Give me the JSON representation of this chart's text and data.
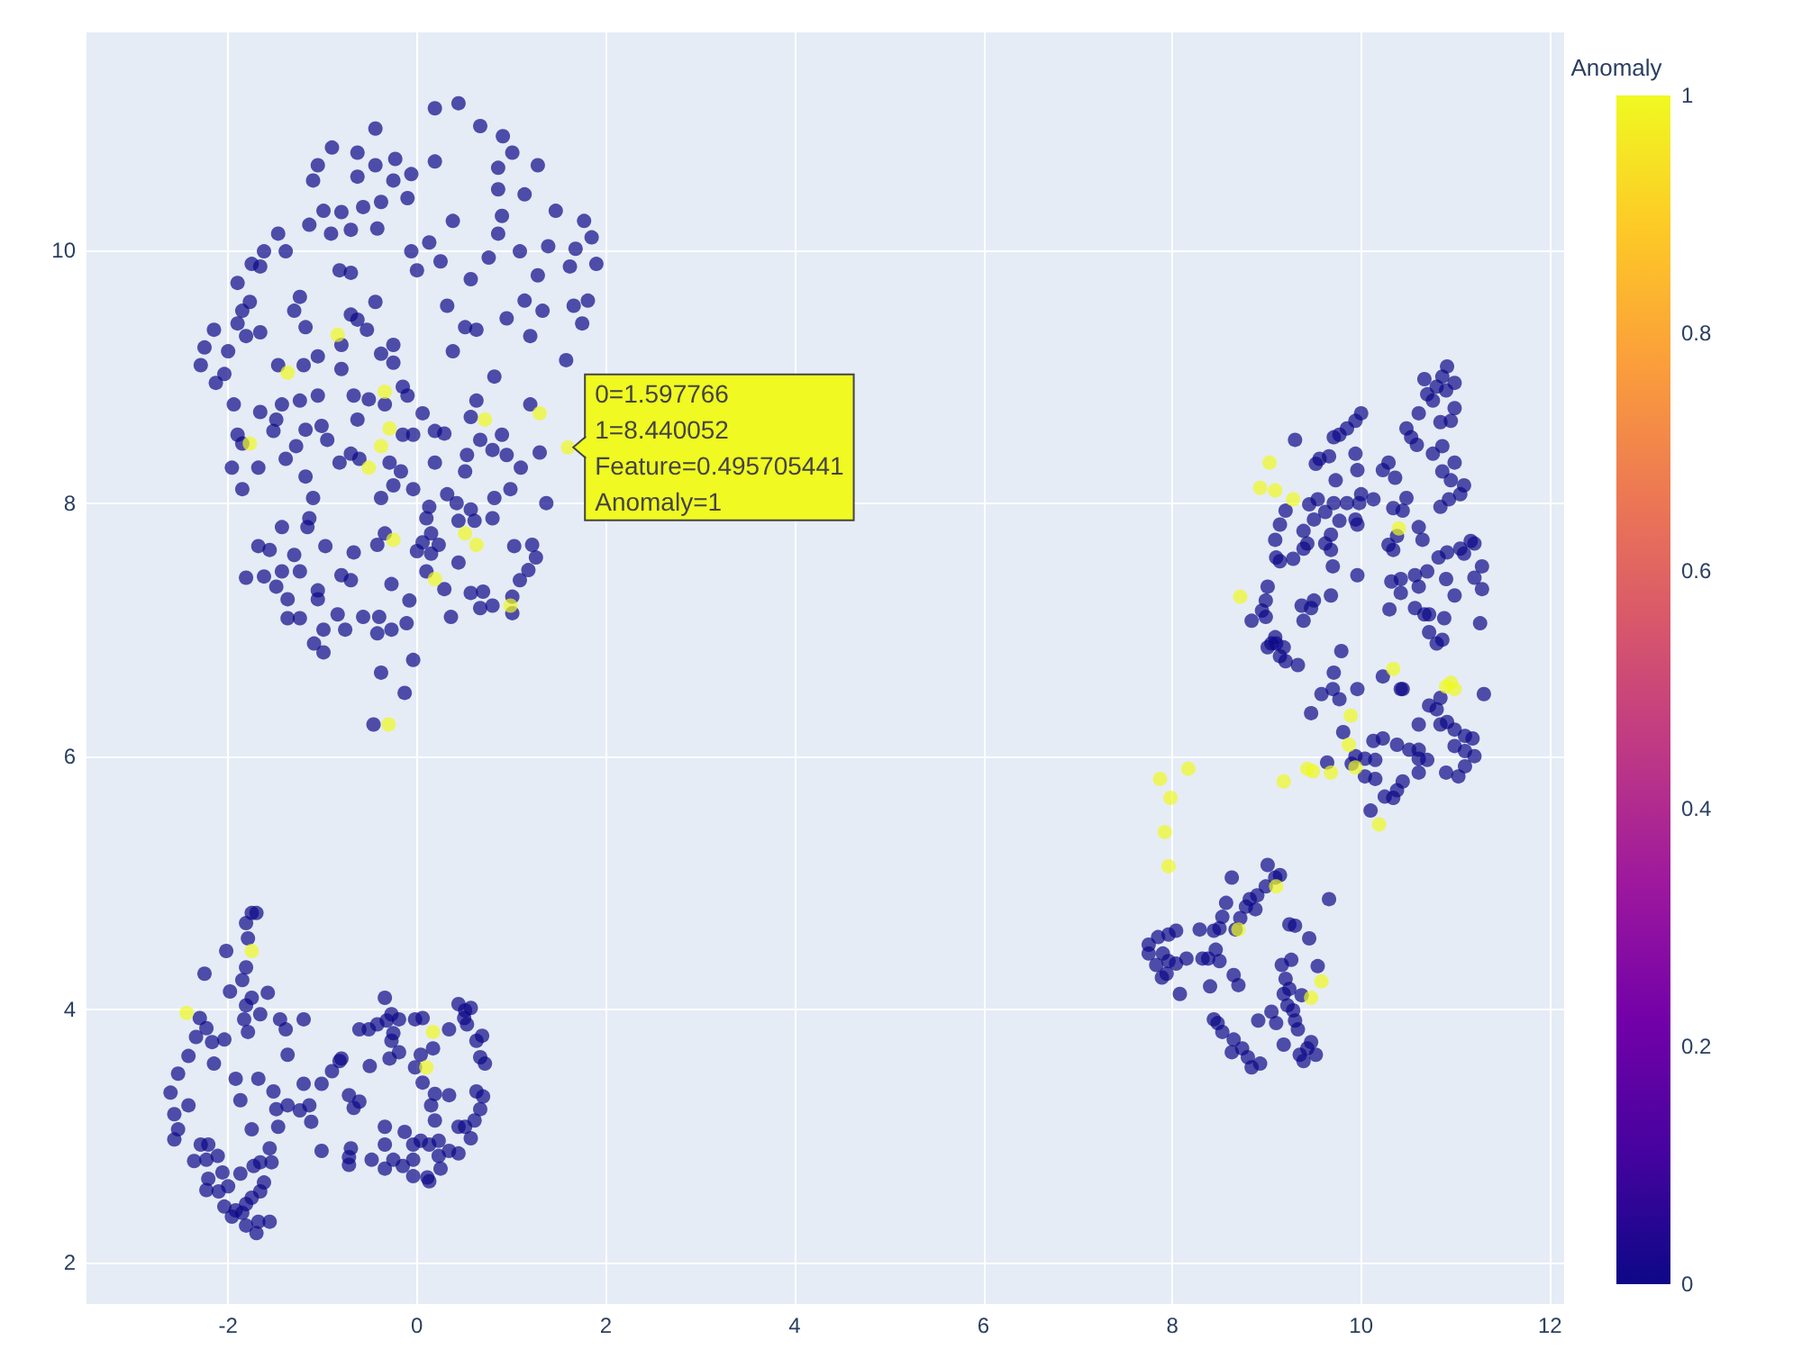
{
  "chart_data": {
    "type": "scatter",
    "x": [
      -0.44,
      0.19,
      0.44,
      0.67,
      0.91,
      0.86,
      1.01,
      1.28,
      0.86,
      1.14,
      0.9,
      0.86,
      1.09,
      1.47,
      1.77,
      1.85,
      1.9,
      1.68,
      1.39,
      1.28,
      1.62,
      1.81,
      1.66,
      1.75,
      1.2,
      0.95,
      1.14,
      1.33,
      1.58,
      0.82,
      0.57,
      0.76,
      0.38,
      0.13,
      0.25,
      0.0,
      0.32,
      0.51,
      0.63,
      0.38,
      0.19,
      -0.06,
      -0.25,
      -0.23,
      -0.44,
      -0.63,
      -0.63,
      -0.9,
      -1.05,
      -1.1,
      -0.38,
      -0.57,
      -0.8,
      -0.99,
      -1.14,
      -1.47,
      -1.62,
      -1.39,
      -0.91,
      -0.7,
      -0.42,
      -0.1,
      -0.82,
      -0.7,
      -0.06,
      -0.44,
      -0.7,
      -0.63,
      -0.53,
      -0.25,
      -0.38,
      -0.25,
      -0.8,
      -1.05,
      -1.2,
      -1.3,
      -1.24,
      -1.18,
      -1.66,
      -1.81,
      -1.9,
      -1.85,
      -1.77,
      -2.0,
      -2.15,
      -2.25,
      -2.29,
      -2.13,
      -2.04,
      -1.75,
      -1.66,
      -1.9,
      -1.47,
      -0.8,
      -0.67,
      -0.51,
      -0.34,
      -0.15,
      -0.1,
      0.06,
      -1.94,
      -1.9,
      -1.85,
      -1.96,
      -1.68,
      -1.85,
      -1.66,
      -1.49,
      -1.52,
      -1.43,
      -1.24,
      -1.05,
      -1.18,
      -1.01,
      -0.95,
      -1.28,
      -1.39,
      -1.18,
      -1.1,
      -1.14,
      -1.16,
      -1.43,
      -0.82,
      -0.7,
      -0.61,
      -0.63,
      -0.15,
      -0.04,
      0.19,
      0.29,
      -0.29,
      -0.17,
      0.19,
      -0.25,
      -0.38,
      -0.04,
      0.13,
      0.1,
      0.32,
      0.42,
      0.57,
      0.61,
      0.44,
      0.82,
      0.99,
      0.8,
      1.37,
      0.57,
      0.63,
      0.9,
      0.8,
      0.95,
      0.67,
      0.53,
      0.51,
      1.1,
      1.3,
      1.2,
      0.15,
      0.06,
      0.23,
      0.0,
      0.15,
      0.1,
      0.29,
      0.44,
      0.57,
      0.7,
      0.8,
      0.67,
      1.01,
      1.01,
      1.09,
      1.18,
      1.26,
      1.22,
      1.03,
      0.36,
      -0.08,
      -0.11,
      -0.27,
      -0.4,
      -0.42,
      -0.57,
      -0.76,
      -0.84,
      -0.99,
      -1.09,
      -0.99,
      -1.24,
      -1.37,
      -1.37,
      -1.05,
      -1.05,
      -1.49,
      -1.62,
      -1.81,
      -1.43,
      -1.3,
      -1.24,
      -1.56,
      -1.68,
      -0.97,
      -0.8,
      -0.7,
      -0.67,
      -0.42,
      -0.34,
      -0.27,
      -0.38,
      -0.13,
      -0.04,
      -0.46,
      -1.75,
      -1.7,
      -1.81,
      -1.79,
      -2.02,
      -2.25,
      -1.81,
      -1.85,
      -1.98,
      -1.75,
      -1.58,
      -1.81,
      -1.66,
      -1.83,
      -1.79,
      -1.45,
      -1.39,
      -1.2,
      -2.3,
      -2.23,
      -2.34,
      -2.17,
      -2.04,
      -2.42,
      -2.53,
      -2.61,
      -2.57,
      -2.53,
      -2.57,
      -2.42,
      -2.15,
      -1.92,
      -1.87,
      -1.68,
      -1.52,
      -1.49,
      -1.37,
      -1.37,
      -1.2,
      -1.01,
      -0.82,
      -0.9,
      -1.14,
      -1.24,
      -1.12,
      -1.75,
      -1.47,
      -1.56,
      -2.29,
      -2.21,
      -2.36,
      -2.23,
      -2.11,
      -2.06,
      -2.21,
      -2.23,
      -2.1,
      -2.0,
      -2.04,
      -1.92,
      -1.96,
      -1.85,
      -1.81,
      -1.68,
      -1.7,
      -1.56,
      -1.81,
      -1.87,
      -1.73,
      -1.66,
      -1.62,
      -1.66,
      -1.75,
      -1.54,
      -1.01,
      -0.72,
      -0.67,
      -0.61,
      -0.7,
      -0.72,
      -0.72,
      -0.48,
      -0.34,
      -0.34,
      -0.34,
      -0.25,
      -0.15,
      -0.13,
      -0.04,
      -0.04,
      -0.04,
      0.11,
      0.13,
      0.04,
      0.13,
      0.23,
      0.23,
      0.25,
      0.34,
      0.44,
      0.51,
      0.57,
      0.61,
      0.67,
      0.7,
      0.63,
      0.72,
      0.67,
      0.63,
      0.69,
      0.53,
      0.51,
      0.57,
      0.44,
      0.5,
      0.34,
      0.17,
      0.04,
      -0.02,
      0.06,
      0.15,
      0.19,
      0.19,
      0.34,
      0.44,
      -0.25,
      -0.27,
      -0.19,
      -0.29,
      -0.32,
      -0.42,
      -0.51,
      -0.61,
      -0.34,
      -0.27,
      -0.19,
      -0.02,
      0.06,
      -0.5,
      -0.8,
      10.91,
      10.86,
      10.99,
      10.67,
      10.8,
      10.9,
      10.7,
      10.76,
      10.99,
      10.95,
      10.84,
      10.61,
      10.48,
      10.53,
      10.59,
      10.76,
      10.86,
      10.86,
      10.99,
      10.95,
      11.09,
      11.05,
      10.93,
      10.84,
      10.0,
      9.94,
      9.85,
      9.71,
      9.77,
      9.56,
      9.52,
      9.66,
      9.94,
      9.96,
      9.73,
      9.3,
      10.23,
      10.29,
      10.36,
      10.0,
      10.13,
      9.98,
      10.48,
      10.44,
      10.34,
      9.85,
      9.71,
      9.54,
      9.45,
      9.2,
      9.62,
      9.77,
      9.94,
      9.96,
      9.5,
      9.14,
      9.09,
      9.39,
      9.68,
      9.43,
      9.62,
      9.68,
      9.39,
      9.1,
      9.14,
      9.28,
      9.7,
      9.96,
      10.29,
      10.34,
      10.38,
      10.61,
      10.65,
      10.82,
      10.91,
      11.05,
      11.09,
      11.16,
      11.2,
      11.28,
      11.2,
      11.28,
      11.26,
      10.99,
      10.9,
      10.7,
      10.57,
      10.61,
      10.42,
      10.32,
      10.42,
      10.3,
      10.57,
      10.67,
      10.72,
      10.72,
      10.88,
      10.86,
      10.8,
      9.68,
      9.5,
      9.37,
      9.47,
      9.39,
      9.01,
      8.99,
      8.95,
      8.99,
      8.84,
      9.09,
      9.05,
      9.1,
      9.18,
      9.01,
      9.14,
      9.2,
      9.33,
      9.79,
      9.71,
      9.96,
      9.7,
      9.58,
      9.77,
      10.23,
      10.42,
      10.44,
      10.84,
      10.72,
      10.8,
      11.3,
      9.47,
      9.81,
      10.61,
      10.84,
      10.91,
      10.99,
      11.1,
      11.18,
      10.13,
      10.23,
      10.38,
      10.51,
      10.61,
      10.61,
      10.7,
      10.99,
      11.1,
      11.2,
      11.1,
      11.03,
      10.9,
      10.61,
      9.64,
      9.94,
      10.04,
      10.15,
      9.9,
      10.04,
      10.15,
      10.44,
      10.38,
      10.25,
      10.34,
      10.1,
      9.01,
      9.14,
      9.09,
      8.99,
      8.9,
      8.82,
      8.63,
      8.57,
      9.66,
      8.78,
      8.88,
      8.72,
      8.53,
      8.5,
      8.44,
      8.67,
      8.29,
      8.04,
      7.96,
      7.85,
      7.75,
      7.75,
      7.9,
      7.83,
      7.96,
      8.04,
      7.94,
      7.89,
      8.08,
      8.15,
      8.32,
      8.38,
      8.46,
      8.5,
      8.4,
      8.65,
      8.7,
      9.24,
      9.3,
      9.45,
      9.26,
      9.16,
      9.54,
      9.2,
      9.24,
      9.18,
      9.22,
      9.37,
      9.28,
      9.05,
      8.91,
      9.1,
      9.3,
      9.33,
      8.44,
      8.48,
      8.53,
      8.65,
      8.63,
      8.74,
      8.8,
      8.84,
      8.93,
      9.18,
      9.35,
      9.43,
      9.47,
      9.52,
      9.39,
      -0.84,
      -1.37,
      -0.34,
      -0.29,
      1.3,
      0.72,
      -0.38,
      -0.51,
      -1.77,
      1.6,
      -0.25,
      0.51,
      0.63,
      0.19,
      0.99,
      -0.3,
      -1.75,
      -2.44,
      0.17,
      0.1,
      9.03,
      8.93,
      9.09,
      9.28,
      10.4,
      8.72,
      10.34,
      10.95,
      10.99,
      10.9,
      9.89,
      9.87,
      9.43,
      9.49,
      9.68,
      9.18,
      10.19,
      9.94,
      8.17,
      7.87,
      7.98,
      7.92,
      7.96,
      9.1,
      9.58,
      9.47,
      8.7
    ],
    "values": [
      10.96,
      11.12,
      11.16,
      10.98,
      10.9,
      10.65,
      10.77,
      10.67,
      10.48,
      10.44,
      10.27,
      10.13,
      9.99,
      10.31,
      10.23,
      10.1,
      9.89,
      10.01,
      10.03,
      9.8,
      9.87,
      9.6,
      9.56,
      9.42,
      9.32,
      9.46,
      9.6,
      9.52,
      9.13,
      9.0,
      9.77,
      9.94,
      10.23,
      10.06,
      9.91,
      9.84,
      9.56,
      9.39,
      9.37,
      9.2,
      10.7,
      10.6,
      10.55,
      10.72,
      10.67,
      10.58,
      10.77,
      10.81,
      10.67,
      10.55,
      10.38,
      10.34,
      10.3,
      10.31,
      10.2,
      10.13,
      9.99,
      9.99,
      10.13,
      10.16,
      10.17,
      10.41,
      9.84,
      9.82,
      9.99,
      9.59,
      9.49,
      9.45,
      9.37,
      9.25,
      9.18,
      9.11,
      9.25,
      9.16,
      9.09,
      9.52,
      9.63,
      9.39,
      9.35,
      9.32,
      9.42,
      9.52,
      9.59,
      9.2,
      9.37,
      9.23,
      9.09,
      8.95,
      9.02,
      9.89,
      9.87,
      9.74,
      9.09,
      9.06,
      8.85,
      8.82,
      8.78,
      8.92,
      8.85,
      8.71,
      8.78,
      8.54,
      8.47,
      8.28,
      8.28,
      8.11,
      8.72,
      8.66,
      8.57,
      8.78,
      8.81,
      8.85,
      8.58,
      8.61,
      8.5,
      8.45,
      8.35,
      8.21,
      8.04,
      7.88,
      7.81,
      7.81,
      8.32,
      8.39,
      8.35,
      8.66,
      8.54,
      8.54,
      8.57,
      8.55,
      8.32,
      8.25,
      8.32,
      8.14,
      8.04,
      8.11,
      7.97,
      7.88,
      8.07,
      8.0,
      7.95,
      7.86,
      7.86,
      8.04,
      8.11,
      7.88,
      8.0,
      8.68,
      8.81,
      8.54,
      8.42,
      8.38,
      8.5,
      8.38,
      8.25,
      8.28,
      8.4,
      8.78,
      7.76,
      7.69,
      7.67,
      7.62,
      7.6,
      7.46,
      7.32,
      7.53,
      7.29,
      7.3,
      7.19,
      7.17,
      7.26,
      7.13,
      7.39,
      7.47,
      7.57,
      7.67,
      7.66,
      7.1,
      7.23,
      7.05,
      7.0,
      7.1,
      6.97,
      7.1,
      7.0,
      7.12,
      7.0,
      6.89,
      6.82,
      7.09,
      7.09,
      7.24,
      7.24,
      7.31,
      7.34,
      7.42,
      7.41,
      7.46,
      7.59,
      7.46,
      7.63,
      7.66,
      7.66,
      7.43,
      7.39,
      7.61,
      7.67,
      7.76,
      7.36,
      6.66,
      6.5,
      6.76,
      6.25,
      4.76,
      4.76,
      4.68,
      4.56,
      4.46,
      4.28,
      4.33,
      4.23,
      4.14,
      4.09,
      4.13,
      4.03,
      3.96,
      3.92,
      3.82,
      3.92,
      3.84,
      3.92,
      3.93,
      3.85,
      3.78,
      3.74,
      3.76,
      3.63,
      3.49,
      3.34,
      3.17,
      3.05,
      2.97,
      3.24,
      3.57,
      3.45,
      3.28,
      3.45,
      3.35,
      3.21,
      3.24,
      3.64,
      3.41,
      3.41,
      3.59,
      3.51,
      3.24,
      3.2,
      3.11,
      3.05,
      3.07,
      2.9,
      2.93,
      2.93,
      2.8,
      2.81,
      2.84,
      2.71,
      2.66,
      2.57,
      2.56,
      2.6,
      2.44,
      2.41,
      2.36,
      2.39,
      2.29,
      2.32,
      2.23,
      2.32,
      2.46,
      2.7,
      2.76,
      2.79,
      2.63,
      2.56,
      2.51,
      2.79,
      2.88,
      3.32,
      3.22,
      3.27,
      2.9,
      2.83,
      2.77,
      2.81,
      3.07,
      2.93,
      2.74,
      2.81,
      2.76,
      3.03,
      2.93,
      2.81,
      2.68,
      2.67,
      2.64,
      2.96,
      2.93,
      2.96,
      2.84,
      2.74,
      2.88,
      2.86,
      3.07,
      2.98,
      3.12,
      3.21,
      3.31,
      3.35,
      3.57,
      3.62,
      3.75,
      3.79,
      3.88,
      3.99,
      4.01,
      4.04,
      3.93,
      3.84,
      3.69,
      3.64,
      3.54,
      3.42,
      3.24,
      3.12,
      3.33,
      3.32,
      3.07,
      3.81,
      3.75,
      3.66,
      3.61,
      3.91,
      3.88,
      3.84,
      3.84,
      4.09,
      3.96,
      3.92,
      3.92,
      3.93,
      3.55,
      3.61,
      9.08,
      9.0,
      8.95,
      8.98,
      8.92,
      8.89,
      8.86,
      8.81,
      8.75,
      8.65,
      8.64,
      8.71,
      8.59,
      8.52,
      8.46,
      8.39,
      8.45,
      8.25,
      8.32,
      8.18,
      8.14,
      8.07,
      8.03,
      7.97,
      8.71,
      8.65,
      8.59,
      8.52,
      8.54,
      8.35,
      8.31,
      8.37,
      8.39,
      8.26,
      8.18,
      8.5,
      8.26,
      8.32,
      8.2,
      8.07,
      8.03,
      8.0,
      8.04,
      7.94,
      7.96,
      8.0,
      8.0,
      8.03,
      7.99,
      7.94,
      7.93,
      7.86,
      7.87,
      7.83,
      7.87,
      7.83,
      7.71,
      7.78,
      7.75,
      7.68,
      7.68,
      7.63,
      7.64,
      7.57,
      7.54,
      7.56,
      7.5,
      7.43,
      7.67,
      7.63,
      7.74,
      7.81,
      7.71,
      7.57,
      7.61,
      7.64,
      7.6,
      7.7,
      7.68,
      7.5,
      7.41,
      7.32,
      7.05,
      7.27,
      7.4,
      7.46,
      7.43,
      7.34,
      7.4,
      7.38,
      7.29,
      7.16,
      7.17,
      7.12,
      7.12,
      6.98,
      7.09,
      6.92,
      6.89,
      7.27,
      7.23,
      7.19,
      7.17,
      7.07,
      7.34,
      7.23,
      7.15,
      7.1,
      7.07,
      6.94,
      6.89,
      6.89,
      6.86,
      6.86,
      6.79,
      6.75,
      6.72,
      6.83,
      6.66,
      6.53,
      6.53,
      6.49,
      6.45,
      6.63,
      6.53,
      6.53,
      6.46,
      6.4,
      6.37,
      6.49,
      6.34,
      6.19,
      6.25,
      6.25,
      6.27,
      6.21,
      6.16,
      6.14,
      6.12,
      6.14,
      6.09,
      6.05,
      6.05,
      5.98,
      5.97,
      6.08,
      6.04,
      6.0,
      5.92,
      5.84,
      5.87,
      5.87,
      5.95,
      6.0,
      5.98,
      5.97,
      5.94,
      5.84,
      5.82,
      5.8,
      5.73,
      5.68,
      5.67,
      5.57,
      5.14,
      5.06,
      5.04,
      4.97,
      4.9,
      4.87,
      5.04,
      4.84,
      4.87,
      4.81,
      4.79,
      4.72,
      4.73,
      4.64,
      4.62,
      4.63,
      4.63,
      4.62,
      4.59,
      4.57,
      4.51,
      4.44,
      4.44,
      4.35,
      4.38,
      4.36,
      4.28,
      4.25,
      4.12,
      4.4,
      4.4,
      4.4,
      4.47,
      4.38,
      4.18,
      4.27,
      4.19,
      4.67,
      4.66,
      4.56,
      4.39,
      4.35,
      4.34,
      4.24,
      4.16,
      4.12,
      4.03,
      4.11,
      3.99,
      3.98,
      3.91,
      3.89,
      3.91,
      3.84,
      3.92,
      3.89,
      3.82,
      3.76,
      3.66,
      3.69,
      3.62,
      3.54,
      3.57,
      3.72,
      3.64,
      3.69,
      3.74,
      3.64,
      3.59,
      9.33,
      9.03,
      8.88,
      8.59,
      8.71,
      8.66,
      8.45,
      8.28,
      8.47,
      8.44,
      7.71,
      7.76,
      7.67,
      7.4,
      7.19,
      6.25,
      4.46,
      3.97,
      3.82,
      3.54,
      8.32,
      8.12,
      8.1,
      8.03,
      7.8,
      7.26,
      6.69,
      6.58,
      6.53,
      6.55,
      6.32,
      6.09,
      5.9,
      5.88,
      5.87,
      5.8,
      5.46,
      5.91,
      5.9,
      5.82,
      5.67,
      5.4,
      5.13,
      4.97,
      4.22,
      4.09,
      4.63
    ],
    "cvalues": [
      0,
      0,
      0,
      0,
      0,
      0,
      0,
      0,
      0,
      0,
      0,
      0,
      0,
      0,
      0,
      0,
      0,
      0,
      0,
      0,
      0,
      0,
      0,
      0,
      0,
      0,
      0,
      0,
      0,
      0,
      0,
      0,
      0,
      0,
      0,
      0,
      0,
      0,
      0,
      0,
      0,
      0,
      0,
      0,
      0,
      0,
      0,
      0,
      0,
      0,
      0,
      0,
      0,
      0,
      0,
      0,
      0,
      0,
      0,
      0,
      0,
      0,
      0,
      0,
      0,
      0,
      0,
      0,
      0,
      0,
      0,
      0,
      0,
      0,
      0,
      0,
      0,
      0,
      0,
      0,
      0,
      0,
      0,
      0,
      0,
      0,
      0,
      0,
      0,
      0,
      0,
      0,
      0,
      0,
      0,
      0,
      0,
      0,
      0,
      0,
      0,
      0,
      0,
      0,
      0,
      0,
      0,
      0,
      0,
      0,
      0,
      0,
      0,
      0,
      0,
      0,
      0,
      0,
      0,
      0,
      0,
      0,
      0,
      0,
      0,
      0,
      0,
      0,
      0,
      0,
      0,
      0,
      0,
      0,
      0,
      0,
      0,
      0,
      0,
      0,
      0,
      0,
      0,
      0,
      0,
      0,
      0,
      0,
      0,
      0,
      0,
      0,
      0,
      0,
      0,
      0,
      0,
      0,
      0,
      0,
      0,
      0,
      0,
      0,
      0,
      0,
      0,
      0,
      0,
      0,
      0,
      0,
      0,
      0,
      0,
      0,
      0,
      0,
      0,
      0,
      0,
      0,
      0,
      0,
      0,
      0,
      0,
      0,
      0,
      0,
      0,
      0,
      0,
      0,
      0,
      0,
      0,
      0,
      0,
      0,
      0,
      0,
      0,
      0,
      0,
      0,
      0,
      0,
      0,
      0,
      0,
      0,
      0,
      0,
      0,
      0,
      0,
      0,
      0,
      0,
      0,
      0,
      0,
      0,
      0,
      0,
      0,
      0,
      0,
      0,
      0,
      0,
      0,
      0,
      0,
      0,
      0,
      0,
      0,
      0,
      0,
      0,
      0,
      0,
      0,
      0,
      0,
      0,
      0,
      0,
      0,
      0,
      0,
      0,
      0,
      0,
      0,
      0,
      0,
      0,
      0,
      0,
      0,
      0,
      0,
      0,
      0,
      0,
      0,
      0,
      0,
      0,
      0,
      0,
      0,
      0,
      0,
      0,
      0,
      0,
      0,
      0,
      0,
      0,
      0,
      0,
      0,
      0,
      0,
      0,
      0,
      0,
      0,
      0,
      0,
      0,
      0,
      0,
      0,
      0,
      0,
      0,
      0,
      0,
      0,
      0,
      0,
      0,
      0,
      0,
      0,
      0,
      0,
      0,
      0,
      0,
      0,
      0,
      0,
      0,
      0,
      0,
      0,
      0,
      0,
      0,
      0,
      0,
      0,
      0,
      0,
      0,
      0,
      0,
      0,
      0,
      0,
      0,
      0,
      0,
      0,
      0,
      0,
      0,
      0,
      0,
      0,
      0,
      0,
      0,
      0,
      0,
      0,
      0,
      0,
      0,
      0,
      0,
      0,
      0,
      0,
      0,
      0,
      0,
      0,
      0,
      0,
      0,
      0,
      0,
      0,
      0,
      0,
      0,
      0,
      0,
      0,
      0,
      0,
      0,
      0,
      0,
      0,
      0,
      0,
      0,
      0,
      0,
      0,
      0,
      0,
      0,
      0,
      0,
      0,
      0,
      0,
      0,
      0,
      0,
      0,
      0,
      0,
      0,
      0,
      0,
      0,
      0,
      0,
      0,
      0,
      0,
      0,
      0,
      0,
      0,
      0,
      0,
      0,
      0,
      0,
      0,
      0,
      0,
      0,
      0,
      0,
      0,
      0,
      0,
      0,
      0,
      0,
      0,
      0,
      0,
      0,
      0,
      0,
      0,
      0,
      0,
      0,
      0,
      0,
      0,
      0,
      0,
      0,
      0,
      0,
      0,
      0,
      0,
      0,
      0,
      0,
      0,
      0,
      0,
      0,
      0,
      0,
      0,
      0,
      0,
      0,
      0,
      0,
      0,
      0,
      0,
      0,
      0,
      0,
      0,
      0,
      0,
      0,
      0,
      0,
      0,
      0,
      0,
      0,
      0,
      0,
      0,
      0,
      0,
      0,
      0,
      0,
      0,
      0,
      0,
      0,
      0,
      0,
      0,
      0,
      0,
      0,
      0,
      0,
      0,
      0,
      0,
      0,
      0,
      0,
      0,
      0,
      0,
      0,
      0,
      0,
      0,
      0,
      0,
      0,
      0,
      0,
      0,
      0,
      0,
      0,
      0,
      0,
      0,
      0,
      0,
      0,
      0,
      0,
      0,
      0,
      0,
      0,
      0,
      0,
      0,
      0,
      0,
      0,
      0,
      0,
      0,
      0,
      0,
      0,
      0,
      0,
      0,
      0,
      0,
      0,
      0,
      0,
      0,
      0,
      0,
      0,
      0,
      0,
      0,
      0,
      0,
      0,
      0,
      0,
      0,
      0,
      0,
      0,
      0,
      0,
      0,
      0,
      0,
      0,
      0,
      0,
      0,
      0,
      0,
      1,
      1,
      1,
      1,
      1,
      1,
      1,
      1,
      1,
      1,
      1,
      1,
      1,
      1,
      1,
      1,
      1,
      1,
      1,
      1,
      1,
      1,
      1,
      1,
      1,
      1,
      1,
      1,
      1,
      1,
      1,
      1,
      1,
      1,
      1,
      1,
      1,
      1,
      1,
      1,
      1,
      1,
      1,
      1,
      1,
      1,
      1
    ],
    "clabel": "Anomaly",
    "clim": [
      0,
      1
    ],
    "cticks": [
      0,
      0.2,
      0.4,
      0.6,
      0.8,
      1
    ],
    "xlim": [
      -3.5,
      12.15
    ],
    "ylim": [
      1.67,
      11.72
    ],
    "xticks": [
      -2,
      0,
      2,
      4,
      6,
      8,
      10,
      12
    ],
    "yticks": [
      2,
      4,
      6,
      8,
      10
    ],
    "grid": true,
    "marker": "circle",
    "annotations": [
      {
        "text": "0=1.597766\n1=8.440052\nFeature=0.495705441\nAnomaly=1",
        "x": 1.597766,
        "y": 8.440052
      }
    ]
  }
}
